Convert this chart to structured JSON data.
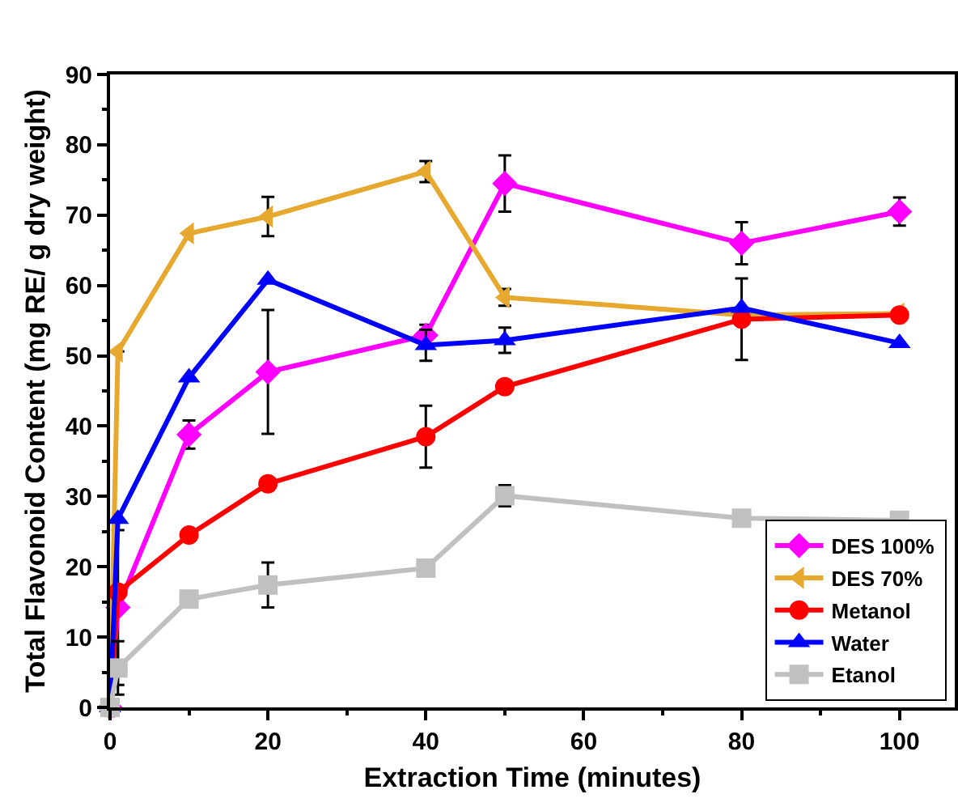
{
  "chart_data": {
    "type": "line",
    "xlabel": "Extraction Time (minutes)",
    "ylabel": "Total Flavonoid Content (mg RE/ g dry weight)",
    "x": [
      0,
      1,
      10,
      20,
      40,
      50,
      80,
      100
    ],
    "xlim": [
      0,
      107
    ],
    "xticks": [
      0,
      20,
      40,
      60,
      80,
      100
    ],
    "ylim": [
      0,
      90
    ],
    "yticks": [
      0,
      10,
      20,
      30,
      40,
      50,
      60,
      70,
      80,
      90
    ],
    "grid": false,
    "legend": "bottom right",
    "line_style": "solid",
    "series": [
      {
        "name": "DES 100%",
        "color": "#ff00ff",
        "marker": "diamond",
        "values": [
          0,
          14.2,
          38.8,
          47.7,
          52.9,
          74.5,
          66,
          70.5
        ],
        "errors": [
          null,
          11,
          2,
          8.8,
          1.5,
          4,
          3,
          2
        ]
      },
      {
        "name": "DES 70%",
        "color": "#e6a82e",
        "marker": "triangle-left",
        "values": [
          0,
          50.6,
          67.4,
          69.8,
          76.2,
          58.3,
          55.8,
          56
        ],
        "errors": [
          null,
          null,
          null,
          2.8,
          1.5,
          1.2,
          null,
          null
        ]
      },
      {
        "name": "Metanol",
        "color": "#ff0000",
        "marker": "circle",
        "values": [
          0,
          16.4,
          24.5,
          31.8,
          38.5,
          45.6,
          55.2,
          55.8
        ],
        "errors": [
          null,
          null,
          null,
          null,
          4.4,
          null,
          5.8,
          null
        ]
      },
      {
        "name": "Water",
        "color": "#0000ff",
        "marker": "triangle-up",
        "values": [
          0,
          26.8,
          46.9,
          60.8,
          51.5,
          52.2,
          56.8,
          51.8
        ],
        "errors": [
          null,
          null,
          null,
          null,
          2.2,
          1.8,
          null,
          null
        ]
      },
      {
        "name": "Etanol",
        "color": "#c0c0c0",
        "marker": "square",
        "values": [
          0,
          5.6,
          15.4,
          17.4,
          19.8,
          30.1,
          26.9,
          26.6
        ],
        "errors": [
          null,
          3.8,
          null,
          3.2,
          null,
          1.5,
          null,
          null
        ]
      }
    ]
  }
}
